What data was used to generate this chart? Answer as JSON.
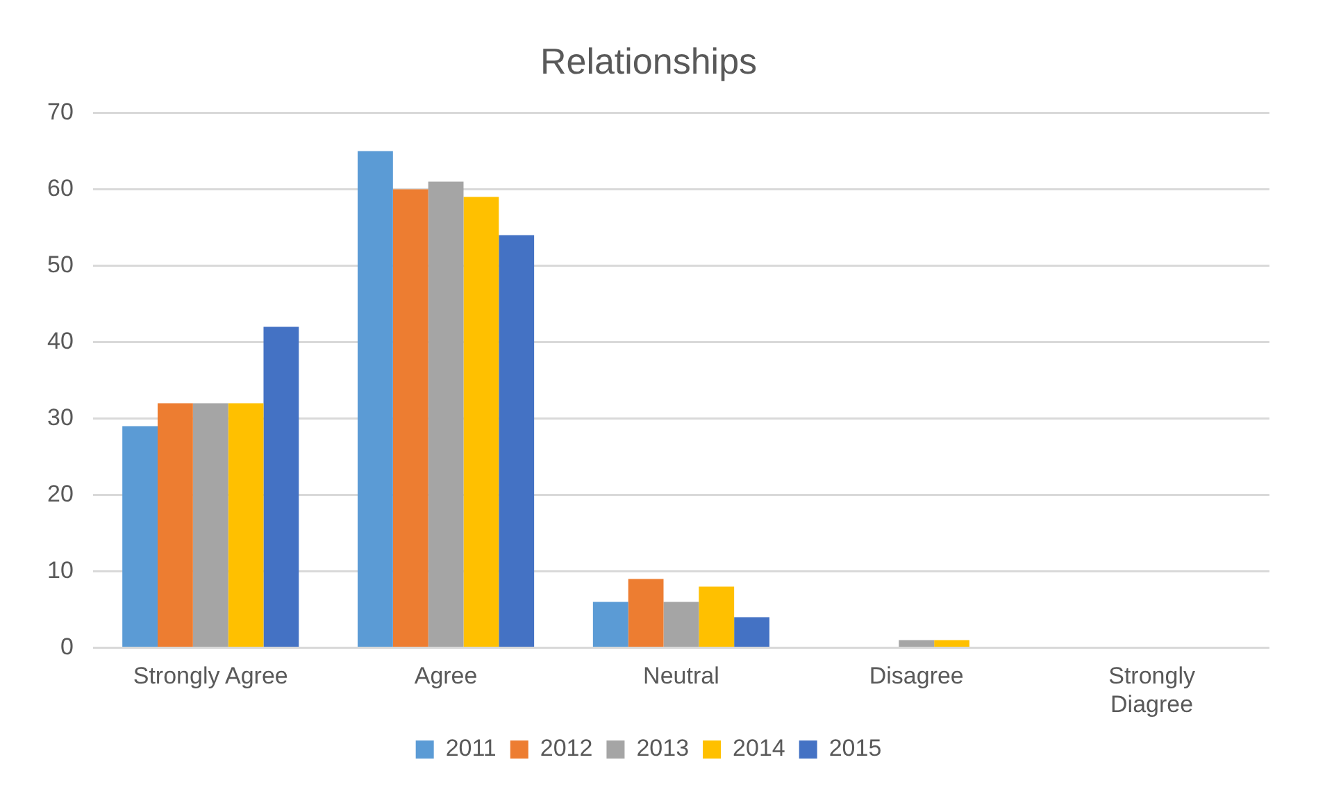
{
  "chart_data": {
    "type": "bar",
    "title": "Relationships",
    "categories": [
      "Strongly Agree",
      "Agree",
      "Neutral",
      "Disagree",
      "Strongly Diagree"
    ],
    "series": [
      {
        "name": "2011",
        "color": "#5b9bd5",
        "values": [
          29,
          65,
          6,
          0,
          0
        ]
      },
      {
        "name": "2012",
        "color": "#ed7d31",
        "values": [
          32,
          60,
          9,
          0,
          0
        ]
      },
      {
        "name": "2013",
        "color": "#a5a5a5",
        "values": [
          32,
          61,
          6,
          1,
          0
        ]
      },
      {
        "name": "2014",
        "color": "#ffc000",
        "values": [
          32,
          59,
          8,
          1,
          0
        ]
      },
      {
        "name": "2015",
        "color": "#4472c4",
        "values": [
          42,
          54,
          4,
          0,
          0
        ]
      }
    ],
    "ylim": [
      0,
      70
    ],
    "yticks": [
      0,
      10,
      20,
      30,
      40,
      50,
      60,
      70
    ],
    "grid": "y",
    "legend": "bottom"
  }
}
